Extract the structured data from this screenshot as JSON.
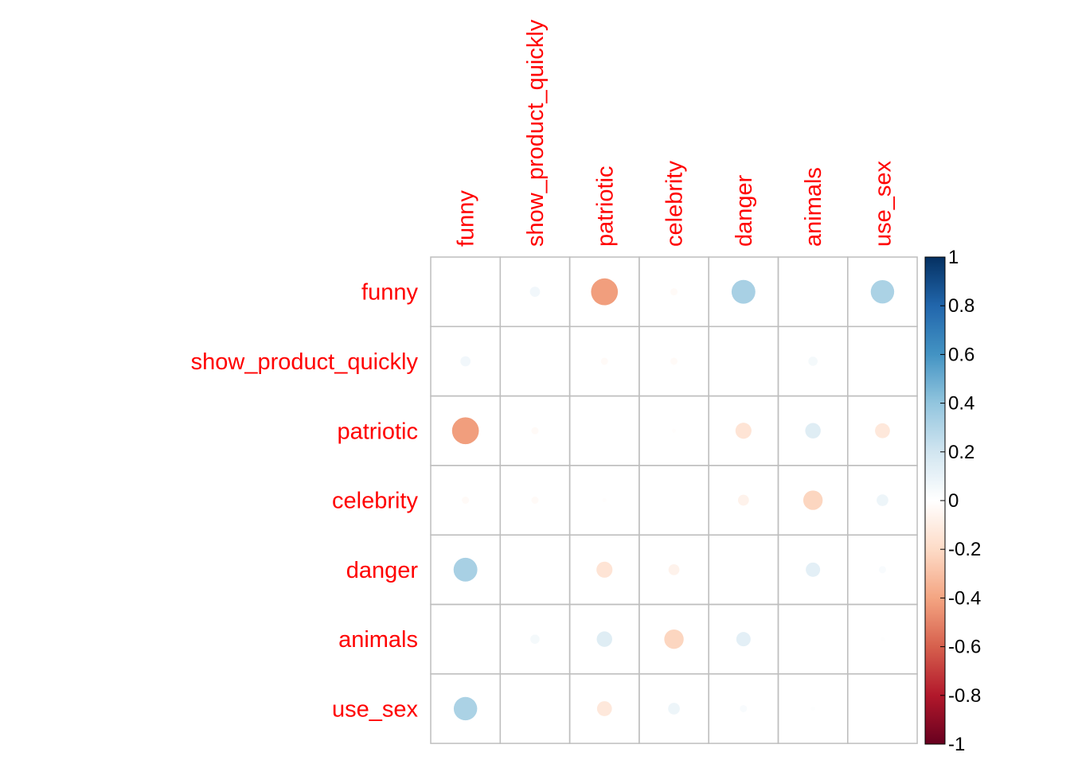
{
  "chart_data": {
    "type": "heatmap",
    "subtype": "correlation-circle-matrix",
    "title": "",
    "xlabel": "",
    "ylabel": "",
    "variables": [
      "funny",
      "show_product_quickly",
      "patriotic",
      "celebrity",
      "danger",
      "animals",
      "use_sex"
    ],
    "matrix": [
      [
        1.0,
        0.06,
        -0.42,
        -0.03,
        0.33,
        0.0,
        0.32
      ],
      [
        0.06,
        1.0,
        -0.03,
        -0.03,
        0.0,
        0.05,
        0.0
      ],
      [
        -0.42,
        -0.03,
        1.0,
        -0.01,
        -0.15,
        0.14,
        -0.13
      ],
      [
        -0.03,
        -0.03,
        -0.01,
        1.0,
        -0.07,
        -0.22,
        0.08
      ],
      [
        0.33,
        0.0,
        -0.15,
        -0.07,
        1.0,
        0.12,
        0.03
      ],
      [
        0.0,
        0.05,
        0.14,
        -0.22,
        0.12,
        1.0,
        0.01
      ],
      [
        0.32,
        0.0,
        -0.13,
        0.08,
        0.03,
        0.01,
        1.0
      ]
    ],
    "diagonal_shown": false,
    "legend": {
      "position": "right",
      "range": [
        -1,
        1
      ],
      "ticks": [
        "1",
        "0.8",
        "0.6",
        "0.4",
        "0.2",
        "0",
        "-0.2",
        "-0.4",
        "-0.6",
        "-0.8",
        "-1"
      ],
      "tick_values": [
        1,
        0.8,
        0.6,
        0.4,
        0.2,
        0,
        -0.2,
        -0.4,
        -0.6,
        -0.8,
        -1
      ]
    },
    "colors": {
      "label_color": "#FF0000",
      "grid_color": "#BEBEBE",
      "palette": [
        "#67001F",
        "#B2182B",
        "#D6604D",
        "#F4A582",
        "#FDDBC7",
        "#FFFFFF",
        "#D1E5F0",
        "#92C5DE",
        "#4393C3",
        "#2166AC",
        "#053061"
      ]
    }
  }
}
